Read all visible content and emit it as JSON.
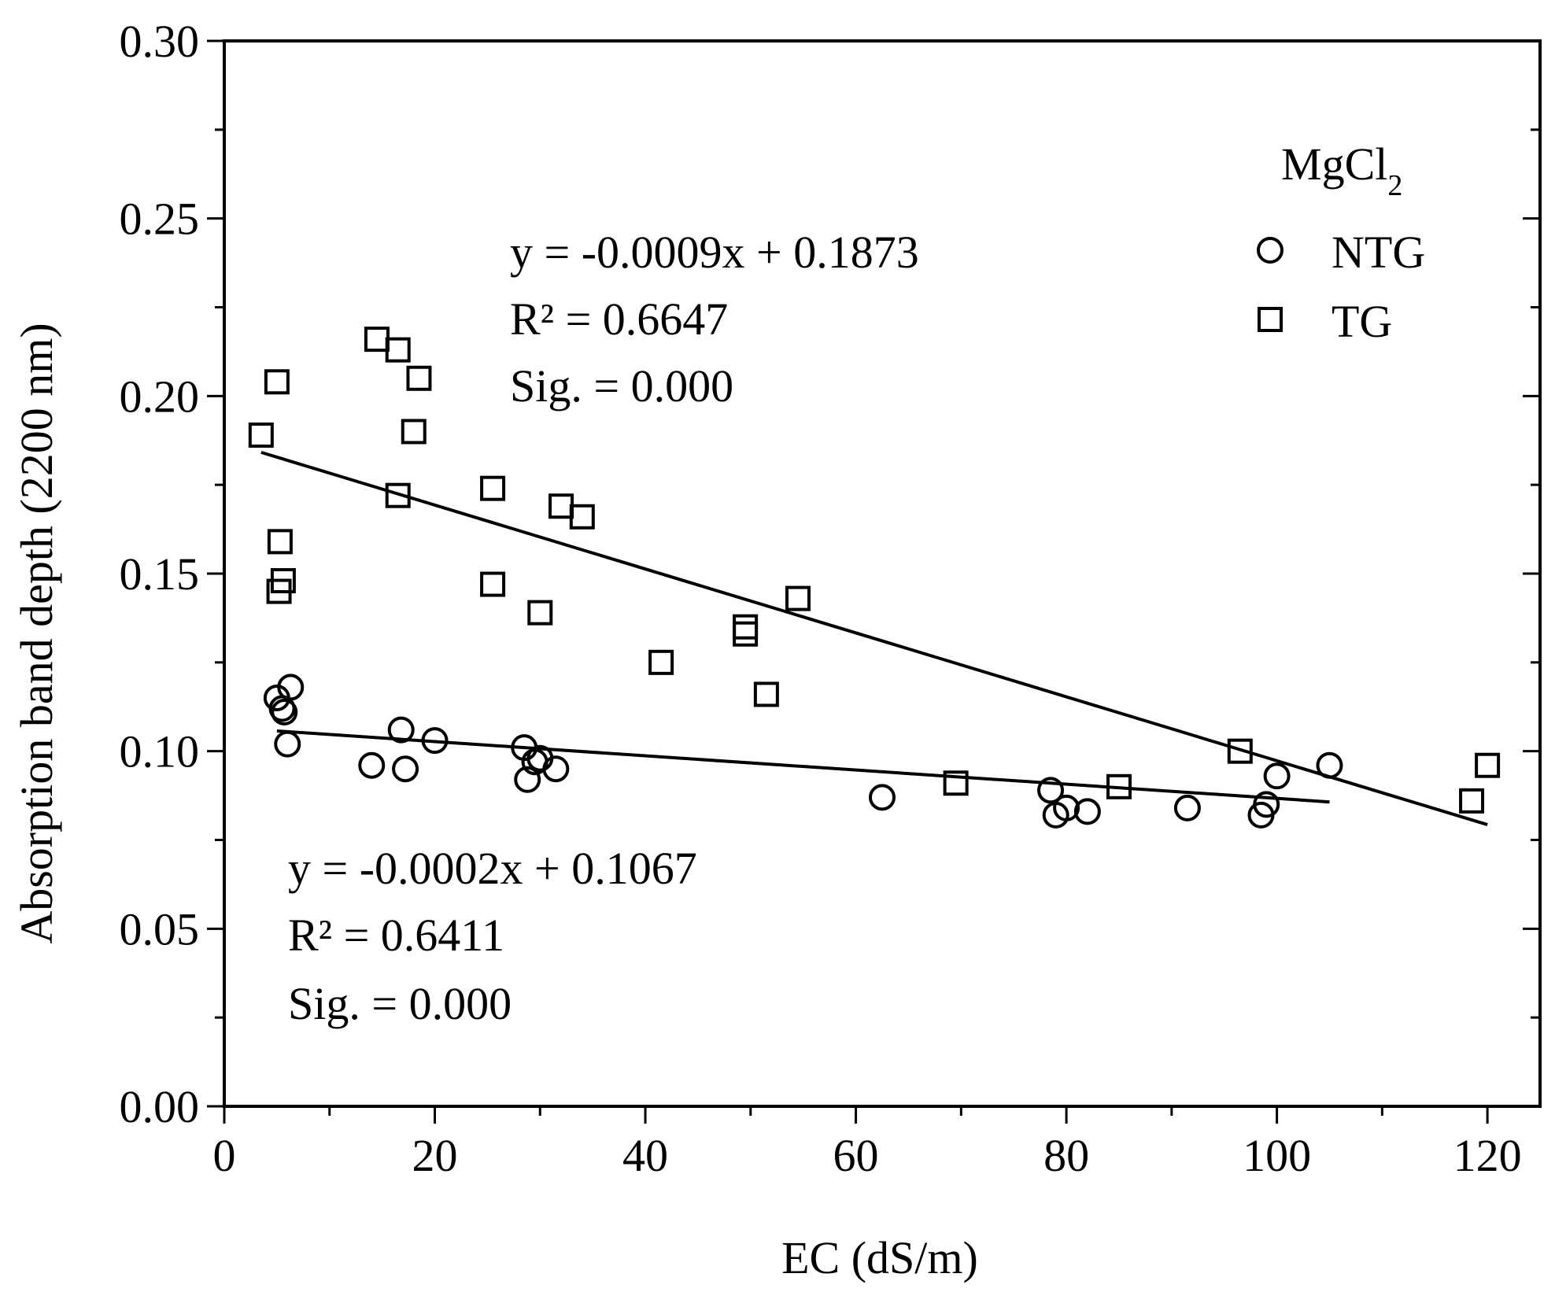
{
  "chart_data": {
    "type": "scatter",
    "title": "",
    "xlabel": "EC (dS/m)",
    "ylabel": "Absorption band depth (2200 nm)",
    "xlim": [
      0,
      125
    ],
    "ylim": [
      0,
      0.3
    ],
    "x_ticks": [
      0,
      20,
      40,
      60,
      80,
      100,
      120
    ],
    "y_ticks": [
      0.0,
      0.05,
      0.1,
      0.15,
      0.2,
      0.25,
      0.3
    ],
    "x_tick_labels": [
      "0",
      "20",
      "40",
      "60",
      "80",
      "100",
      "120"
    ],
    "y_tick_labels": [
      "0.00",
      "0.05",
      "0.10",
      "0.15",
      "0.20",
      "0.25",
      "0.30"
    ],
    "x_minor_step": 10,
    "y_minor_step": 0.025,
    "legend": {
      "title_main": "MgCl",
      "title_sub": "2",
      "placement": "top-right",
      "entries": [
        {
          "label": "NTG",
          "marker": "circle"
        },
        {
          "label": "TG",
          "marker": "square"
        }
      ]
    },
    "series": [
      {
        "name": "NTG",
        "marker": "circle",
        "points": [
          [
            5.0,
            0.115
          ],
          [
            5.5,
            0.112
          ],
          [
            5.7,
            0.111
          ],
          [
            6.0,
            0.102
          ],
          [
            6.3,
            0.118
          ],
          [
            14.0,
            0.096
          ],
          [
            16.8,
            0.106
          ],
          [
            17.2,
            0.095
          ],
          [
            20.0,
            0.103
          ],
          [
            28.5,
            0.101
          ],
          [
            28.8,
            0.092
          ],
          [
            29.5,
            0.097
          ],
          [
            30.0,
            0.098
          ],
          [
            31.5,
            0.095
          ],
          [
            62.5,
            0.087
          ],
          [
            78.5,
            0.089
          ],
          [
            79.0,
            0.082
          ],
          [
            80.0,
            0.084
          ],
          [
            82.0,
            0.083
          ],
          [
            91.5,
            0.084
          ],
          [
            98.5,
            0.082
          ],
          [
            99.0,
            0.085
          ],
          [
            100.0,
            0.093
          ],
          [
            105.0,
            0.096
          ]
        ],
        "fit": {
          "slope": -0.0002,
          "intercept": 0.1067,
          "x_range": [
            5,
            105
          ]
        },
        "equation": "y = -0.0002x + 0.1067",
        "r2": "R² = 0.6411",
        "sig": "Sig. = 0.000"
      },
      {
        "name": "TG",
        "marker": "square",
        "points": [
          [
            3.5,
            0.189
          ],
          [
            5.0,
            0.204
          ],
          [
            5.2,
            0.145
          ],
          [
            5.3,
            0.159
          ],
          [
            5.6,
            0.148
          ],
          [
            14.5,
            0.216
          ],
          [
            16.5,
            0.213
          ],
          [
            16.5,
            0.172
          ],
          [
            18.0,
            0.19
          ],
          [
            18.5,
            0.205
          ],
          [
            25.5,
            0.174
          ],
          [
            25.5,
            0.147
          ],
          [
            30.0,
            0.139
          ],
          [
            32.0,
            0.169
          ],
          [
            34.0,
            0.166
          ],
          [
            41.5,
            0.125
          ],
          [
            49.5,
            0.133
          ],
          [
            49.5,
            0.135
          ],
          [
            51.5,
            0.116
          ],
          [
            54.5,
            0.143
          ],
          [
            69.5,
            0.091
          ],
          [
            85.0,
            0.09
          ],
          [
            96.5,
            0.1
          ],
          [
            118.5,
            0.086
          ],
          [
            120.0,
            0.096
          ]
        ],
        "fit": {
          "slope": -0.0009,
          "intercept": 0.1873,
          "x_range": [
            3.5,
            120
          ]
        },
        "equation": "y = -0.0009x + 0.1873",
        "r2": "R² = 0.6647",
        "sig": "Sig. = 0.000"
      }
    ]
  }
}
